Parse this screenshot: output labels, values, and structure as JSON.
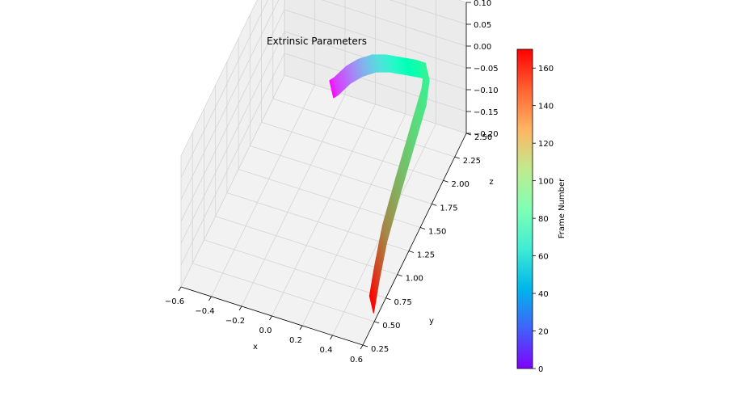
{
  "chart_data": {
    "type": "3d-ribbon",
    "title": "Extrinsic Parameters",
    "xlabel": "x",
    "ylabel": "y",
    "zlabel": "z",
    "x_ticks": [
      "−0.6",
      "−0.4",
      "−0.2",
      "0.0",
      "0.2",
      "0.4",
      "0.6"
    ],
    "y_ticks": [
      "0.25",
      "0.50",
      "0.75",
      "1.00",
      "1.25",
      "1.50",
      "1.75",
      "2.00",
      "2.25",
      "2.50"
    ],
    "z_ticks": [
      "−0.20",
      "−0.15",
      "−0.10",
      "−0.05",
      "0.00",
      "0.05",
      "0.10"
    ],
    "xlim": [
      -0.6,
      0.6
    ],
    "ylim": [
      0.25,
      2.5
    ],
    "zlim": [
      -0.2,
      0.1
    ],
    "grid": true,
    "colormap": "rainbow",
    "colorbar": {
      "label": "Frame Number",
      "range": [
        0,
        170
      ],
      "ticks": [
        "0",
        "20",
        "40",
        "60",
        "80",
        "100",
        "120",
        "140",
        "160"
      ]
    },
    "trajectory": [
      {
        "frame": 0,
        "x": -0.25,
        "y": 2.35,
        "z": -0.16
      },
      {
        "frame": 12,
        "x": -0.22,
        "y": 2.35,
        "z": -0.15
      },
      {
        "frame": 25,
        "x": -0.14,
        "y": 2.35,
        "z": -0.115
      },
      {
        "frame": 38,
        "x": -0.06,
        "y": 2.35,
        "z": -0.09
      },
      {
        "frame": 52,
        "x": 0.03,
        "y": 2.35,
        "z": -0.07
      },
      {
        "frame": 66,
        "x": 0.12,
        "y": 2.35,
        "z": -0.06
      },
      {
        "frame": 80,
        "x": 0.22,
        "y": 2.35,
        "z": -0.055
      },
      {
        "frame": 92,
        "x": 0.32,
        "y": 2.35,
        "z": -0.05
      },
      {
        "frame": 100,
        "x": 0.38,
        "y": 2.35,
        "z": -0.05
      },
      {
        "frame": 108,
        "x": 0.42,
        "y": 2.15,
        "z": -0.06
      },
      {
        "frame": 118,
        "x": 0.44,
        "y": 1.8,
        "z": -0.085
      },
      {
        "frame": 128,
        "x": 0.46,
        "y": 1.45,
        "z": -0.11
      },
      {
        "frame": 140,
        "x": 0.48,
        "y": 1.1,
        "z": -0.14
      },
      {
        "frame": 155,
        "x": 0.52,
        "y": 0.8,
        "z": -0.16
      },
      {
        "frame": 170,
        "x": 0.56,
        "y": 0.55,
        "z": -0.175
      }
    ]
  }
}
